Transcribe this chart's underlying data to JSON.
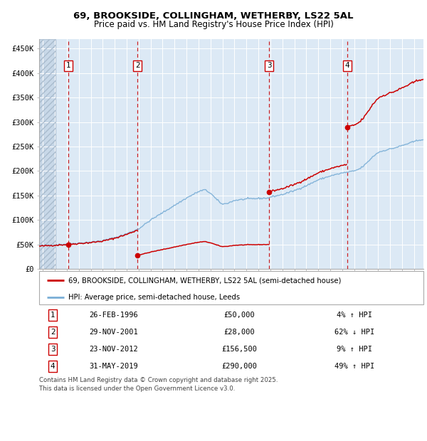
{
  "title_line1": "69, BROOKSIDE, COLLINGHAM, WETHERBY, LS22 5AL",
  "title_line2": "Price paid vs. HM Land Registry's House Price Index (HPI)",
  "ylabel_ticks": [
    "£0",
    "£50K",
    "£100K",
    "£150K",
    "£200K",
    "£250K",
    "£300K",
    "£350K",
    "£400K",
    "£450K"
  ],
  "ytick_values": [
    0,
    50000,
    100000,
    150000,
    200000,
    250000,
    300000,
    350000,
    400000,
    450000
  ],
  "ylim": [
    0,
    470000
  ],
  "xlim_start": 1993.7,
  "xlim_end": 2025.8,
  "background_color": "#dce9f5",
  "grid_color": "#ffffff",
  "red_line_color": "#cc0000",
  "blue_line_color": "#7aaed6",
  "transaction_dates": [
    1996.15,
    2001.91,
    2012.9,
    2019.42
  ],
  "transaction_prices": [
    50000,
    28000,
    156500,
    290000
  ],
  "transaction_labels": [
    "1",
    "2",
    "3",
    "4"
  ],
  "hpi_key_years": [
    1993.7,
    1994,
    1995,
    1996,
    1997,
    1998,
    1999,
    2000,
    2001,
    2002,
    2003,
    2004,
    2005,
    2006,
    2007,
    2007.5,
    2008,
    2008.5,
    2009,
    2009.5,
    2010,
    2011,
    2012,
    2012.9,
    2013,
    2014,
    2015,
    2016,
    2017,
    2018,
    2019,
    2019.5,
    2020,
    2020.5,
    2021,
    2021.5,
    2022,
    2022.5,
    2023,
    2023.5,
    2024,
    2024.5,
    2025,
    2025.5
  ],
  "hpi_key_values": [
    47500,
    48000,
    49500,
    51000,
    53000,
    55000,
    58000,
    64000,
    72000,
    82000,
    100000,
    115000,
    130000,
    145000,
    158000,
    162000,
    155000,
    142000,
    132000,
    135000,
    140000,
    143000,
    144000,
    145000,
    147000,
    152000,
    160000,
    170000,
    182000,
    190000,
    196000,
    198000,
    200000,
    205000,
    215000,
    228000,
    238000,
    242000,
    245000,
    248000,
    252000,
    256000,
    260000,
    264000
  ],
  "legend_entries": [
    "69, BROOKSIDE, COLLINGHAM, WETHERBY, LS22 5AL (semi-detached house)",
    "HPI: Average price, semi-detached house, Leeds"
  ],
  "table_data": [
    [
      "1",
      "26-FEB-1996",
      "£50,000",
      "4% ↑ HPI"
    ],
    [
      "2",
      "29-NOV-2001",
      "£28,000",
      "62% ↓ HPI"
    ],
    [
      "3",
      "23-NOV-2012",
      "£156,500",
      "9% ↑ HPI"
    ],
    [
      "4",
      "31-MAY-2019",
      "£290,000",
      "49% ↑ HPI"
    ]
  ],
  "footer_text": "Contains HM Land Registry data © Crown copyright and database right 2025.\nThis data is licensed under the Open Government Licence v3.0."
}
